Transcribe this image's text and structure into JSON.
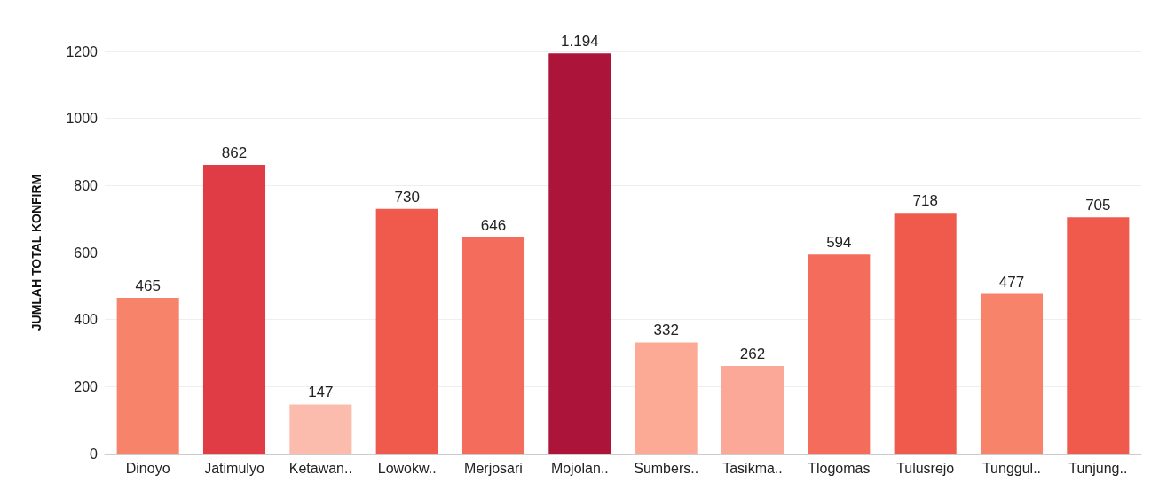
{
  "chart_data": {
    "type": "bar",
    "ylabel": "JUMLAH TOTAL KONFIRM",
    "categories": [
      "Dinoyo",
      "Jatimulyo",
      "Ketawan..",
      "Lowokw..",
      "Merjosari",
      "Mojolan..",
      "Sumbers..",
      "Tasikma..",
      "Tlogomas",
      "Tulusrejo",
      "Tunggul..",
      "Tunjung.."
    ],
    "values": [
      465,
      862,
      147,
      730,
      646,
      1194,
      332,
      262,
      594,
      718,
      477,
      705
    ],
    "value_labels": [
      "465",
      "862",
      "147",
      "730",
      "646",
      "1.194",
      "332",
      "262",
      "594",
      "718",
      "477",
      "705"
    ],
    "colors": [
      "#f8836b",
      "#e03c45",
      "#fcbcad",
      "#ef5a4c",
      "#f46c5c",
      "#ad1439",
      "#fcaa96",
      "#fca898",
      "#f46c5c",
      "#ef5a4c",
      "#f8836b",
      "#ef5a4c"
    ],
    "ylim": [
      0,
      1200
    ],
    "yticks": [
      0,
      200,
      400,
      600,
      800,
      1000,
      1200
    ],
    "grid": "y"
  }
}
